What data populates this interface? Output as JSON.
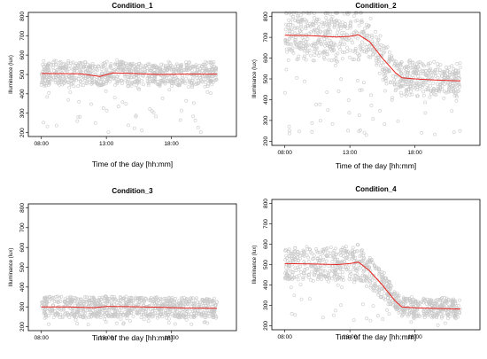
{
  "colors": {
    "points": "#c8c8c8",
    "mean_line": "#e8231f",
    "frame": "#000000"
  },
  "chart_data": [
    {
      "type": "scatter",
      "title": "Condition_1",
      "xlabel": "Time of the day [hh:mm]",
      "ylabel": "Illuminance (lux)",
      "xlim": [
        "07:00",
        "23:00"
      ],
      "ylim": [
        180,
        820
      ],
      "x_ticks": [
        "08:00",
        "13:00",
        "18:00"
      ],
      "y_ticks": [
        200,
        300,
        400,
        500,
        600,
        700,
        800
      ],
      "scatter_band": {
        "lower": 430,
        "upper": 560
      },
      "outlier_range": [
        200,
        620
      ],
      "mean_line": {
        "x": [
          "08:00",
          "11:00",
          "12:30",
          "13:30",
          "15:00",
          "17:00",
          "19:00",
          "21:30"
        ],
        "y": [
          505,
          503,
          490,
          508,
          505,
          500,
          502,
          502
        ]
      }
    },
    {
      "type": "scatter",
      "title": "Condition_2",
      "xlabel": "Time of the day [hh:mm]",
      "ylabel": "Illuminance (lux)",
      "xlim": [
        "07:00",
        "23:00"
      ],
      "ylim": [
        180,
        820
      ],
      "x_ticks": [
        "08:00",
        "13:00",
        "18:00"
      ],
      "y_ticks": [
        200,
        300,
        400,
        500,
        600,
        700,
        800
      ],
      "scatter_band": {
        "lower": 570,
        "upper": 800
      },
      "outlier_range": [
        220,
        800
      ],
      "mean_line": {
        "x": [
          "08:00",
          "10:00",
          "12:00",
          "13:00",
          "13:40",
          "14:30",
          "15:30",
          "16:30",
          "17:00",
          "18:00",
          "19:30",
          "21:30"
        ],
        "y": [
          710,
          708,
          702,
          705,
          712,
          680,
          600,
          530,
          505,
          500,
          495,
          490
        ]
      }
    },
    {
      "type": "scatter",
      "title": "Condition_3",
      "xlabel": "Time of the day [hh:mm]",
      "ylabel": "Illuminance (lux)",
      "xlim": [
        "07:00",
        "23:00"
      ],
      "ylim": [
        180,
        820
      ],
      "x_ticks": [
        "08:00",
        "13:00",
        "18:00"
      ],
      "y_ticks": [
        200,
        300,
        400,
        500,
        600,
        700,
        800
      ],
      "scatter_band": {
        "lower": 240,
        "upper": 355
      },
      "outlier_range": [
        210,
        360
      ],
      "mean_line": {
        "x": [
          "08:00",
          "10:00",
          "12:00",
          "13:00",
          "15:00",
          "17:00",
          "19:00",
          "21:30"
        ],
        "y": [
          300,
          300,
          296,
          302,
          301,
          298,
          294,
          293
        ]
      }
    },
    {
      "type": "scatter",
      "title": "Condition_4",
      "xlabel": "Time of the day [hh:mm]",
      "ylabel": "Illuminance (lux)",
      "xlim": [
        "07:00",
        "23:00"
      ],
      "ylim": [
        180,
        820
      ],
      "x_ticks": [
        "08:00",
        "13:00",
        "18:00"
      ],
      "y_ticks": [
        200,
        300,
        400,
        500,
        600,
        700,
        800
      ],
      "scatter_band": {
        "lower": 420,
        "upper": 600
      },
      "outlier_range": [
        200,
        600
      ],
      "mean_line": {
        "x": [
          "08:00",
          "10:00",
          "12:00",
          "13:00",
          "13:40",
          "14:30",
          "15:30",
          "16:30",
          "17:00",
          "18:00",
          "19:30",
          "21:30"
        ],
        "y": [
          505,
          503,
          500,
          505,
          512,
          470,
          400,
          320,
          292,
          288,
          285,
          282
        ]
      }
    }
  ]
}
